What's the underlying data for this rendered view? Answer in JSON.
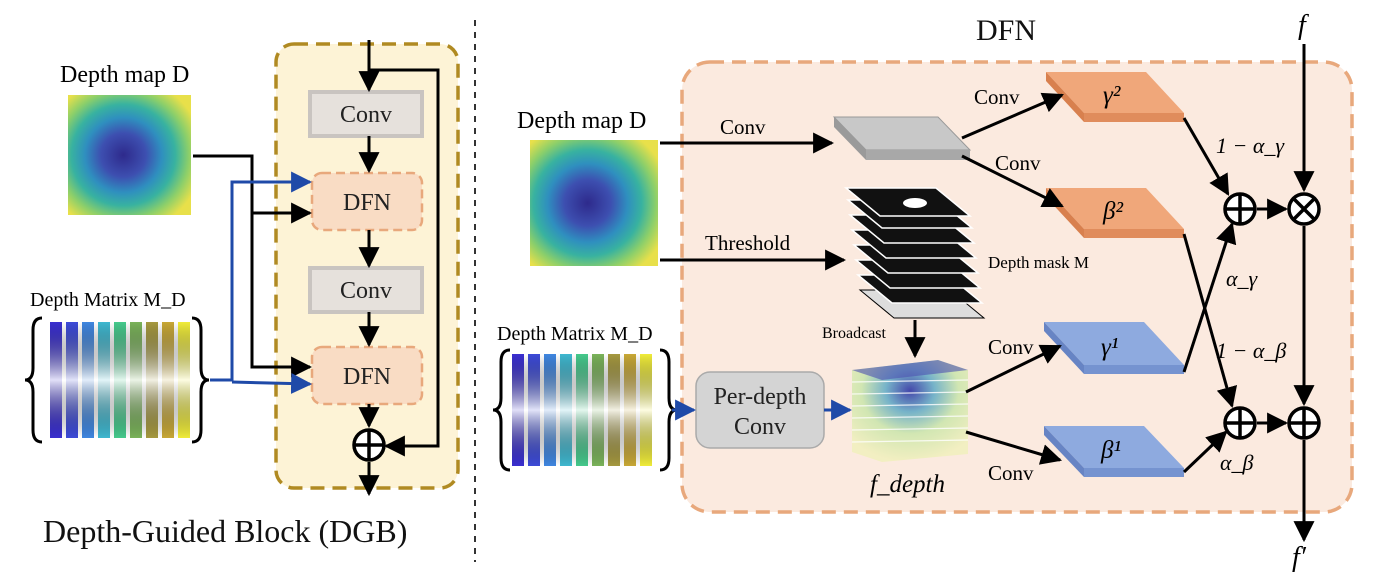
{
  "left": {
    "depth_map_label": "Depth map D",
    "depth_matrix_label": "Depth Matrix M_D",
    "conv1": "Conv",
    "dfn1": "DFN",
    "conv2": "Conv",
    "dfn2": "DFN",
    "caption": "Depth-Guided Block (DGB)"
  },
  "right": {
    "title": "DFN",
    "depth_map_label": "Depth map D",
    "depth_matrix_label": "Depth Matrix M_D",
    "conv_top": "Conv",
    "conv_gamma2": "Conv",
    "conv_beta2": "Conv",
    "threshold": "Threshold",
    "depth_mask": "Depth mask M",
    "broadcast": "Broadcast",
    "per_depth_conv_1": "Per-depth",
    "per_depth_conv_2": "Conv",
    "conv_gamma1": "Conv",
    "conv_beta1": "Conv",
    "gamma2": "γ²",
    "beta2": "β²",
    "gamma1": "γ¹",
    "beta1": "β¹",
    "one_minus_alpha_gamma": "1 − α_γ",
    "alpha_gamma": "α_γ",
    "one_minus_alpha_beta": "1 − α_β",
    "alpha_beta": "α_β",
    "f_depth": "f_depth",
    "f_in": "f",
    "f_out": "f′"
  },
  "colors": {
    "dgb_bg": "#fdf3d6",
    "dgb_border": "#b08a22",
    "dfn_bg": "#fbeadf",
    "dfn_border": "#e8a87c",
    "dfn_node": "#f9dcc4",
    "conv_gray": "#e6e1dc",
    "orange_slab": "#f0a77a",
    "blue_slab": "#8eaadf",
    "arrow_blue": "#1f4aa8"
  }
}
